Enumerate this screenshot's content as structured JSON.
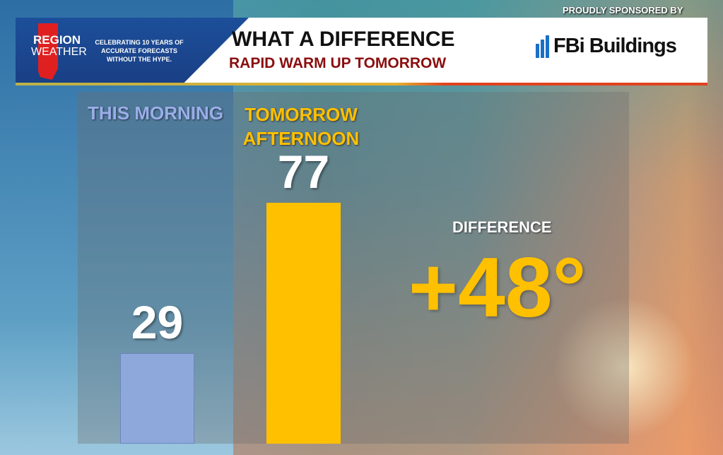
{
  "header": {
    "sponsor_label": "PROUDLY SPONSORED BY",
    "brand_line1": "REGION",
    "brand_line2": "WEATHER",
    "tagline": "CELEBRATING 10 YEARS  OF ACCURATE FORECASTS WITHOUT THE HYPE.",
    "title": "WHAT A DIFFERENCE",
    "subtitle": "RAPID WARM UP TOMORROW",
    "sponsor_logo_text": "FBi Buildings"
  },
  "difference": {
    "label": "DIFFERENCE",
    "value": "+48°"
  },
  "colors": {
    "morning_bar": "#8fa8dc",
    "afternoon_bar": "#ffc000",
    "subtitle": "#8a0e0e"
  },
  "chart_data": {
    "type": "bar",
    "categories": [
      "THIS MORNING",
      "TOMORROW AFTERNOON"
    ],
    "values": [
      29,
      77
    ],
    "value_labels": [
      "29",
      "77"
    ],
    "ylim": [
      0,
      77
    ],
    "grid": false
  }
}
